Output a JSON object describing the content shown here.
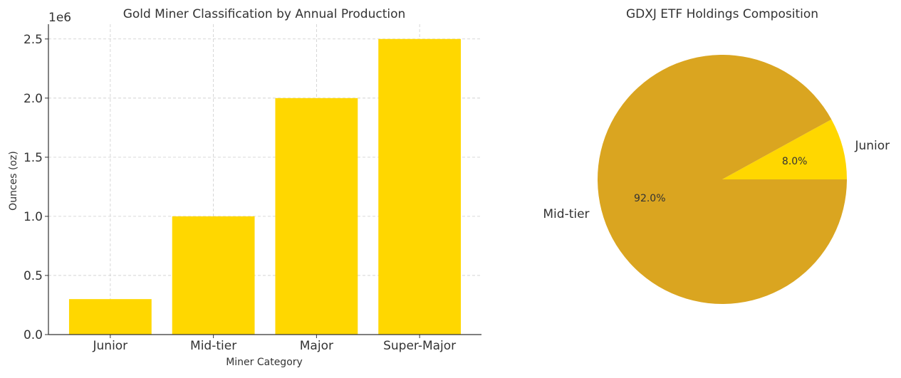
{
  "chart_data": [
    {
      "type": "bar",
      "title": "Gold Miner Classification by Annual Production",
      "xlabel": "Miner Category",
      "ylabel": "Ounces (oz)",
      "y_scale_label": "1e6",
      "categories": [
        "Junior",
        "Mid-tier",
        "Major",
        "Super-Major"
      ],
      "values": [
        300000,
        1000000,
        2000000,
        2500000
      ],
      "ylim": [
        0,
        2625000
      ],
      "yticks": [
        0,
        500000,
        1000000,
        1500000,
        2000000,
        2500000
      ],
      "ytick_labels": [
        "0.0",
        "0.5",
        "1.0",
        "1.5",
        "2.0",
        "2.5"
      ],
      "grid": true,
      "bar_color": "#ffd700"
    },
    {
      "type": "pie",
      "title": "GDXJ ETF Holdings Composition",
      "labels": [
        "Junior",
        "Mid-tier"
      ],
      "values": [
        8.0,
        92.0
      ],
      "pct_labels": [
        "8.0%",
        "92.0%"
      ],
      "colors": [
        "#ffd700",
        "#daa520"
      ]
    }
  ],
  "colors": {
    "axis": "#333333",
    "grid": "#cccccc",
    "text": "#333333"
  }
}
